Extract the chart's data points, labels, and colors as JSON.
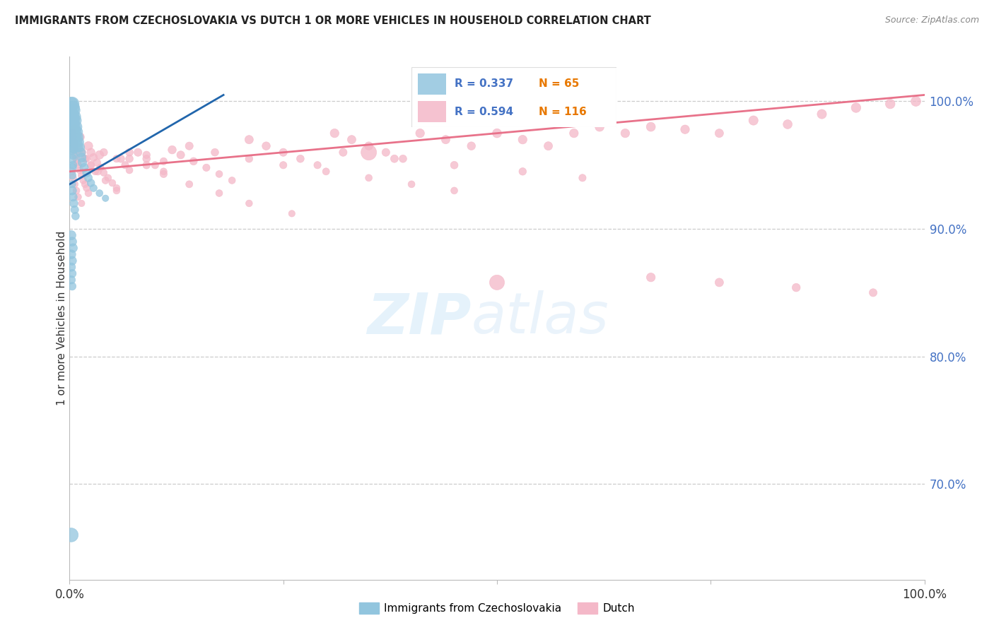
{
  "title": "IMMIGRANTS FROM CZECHOSLOVAKIA VS DUTCH 1 OR MORE VEHICLES IN HOUSEHOLD CORRELATION CHART",
  "source": "Source: ZipAtlas.com",
  "ylabel": "1 or more Vehicles in Household",
  "ytick_labels": [
    "100.0%",
    "90.0%",
    "80.0%",
    "70.0%"
  ],
  "ytick_values": [
    1.0,
    0.9,
    0.8,
    0.7
  ],
  "xlim": [
    0.0,
    1.0
  ],
  "ylim": [
    0.625,
    1.035
  ],
  "legend_label_blue": "Immigrants from Czechoslovakia",
  "legend_label_pink": "Dutch",
  "blue_color": "#92c5de",
  "pink_color": "#f4b8c8",
  "blue_line_color": "#2166ac",
  "pink_line_color": "#e8728a",
  "blue_line_x0": 0.0,
  "blue_line_y0": 0.935,
  "blue_line_x1": 0.18,
  "blue_line_y1": 1.005,
  "pink_line_x0": 0.0,
  "pink_line_y0": 0.945,
  "pink_line_x1": 1.0,
  "pink_line_y1": 1.005,
  "blue_x": [
    0.002,
    0.002,
    0.002,
    0.002,
    0.002,
    0.003,
    0.003,
    0.003,
    0.003,
    0.003,
    0.003,
    0.003,
    0.003,
    0.003,
    0.003,
    0.004,
    0.004,
    0.004,
    0.004,
    0.004,
    0.004,
    0.004,
    0.005,
    0.005,
    0.005,
    0.005,
    0.005,
    0.006,
    0.006,
    0.006,
    0.007,
    0.007,
    0.008,
    0.008,
    0.009,
    0.009,
    0.01,
    0.01,
    0.011,
    0.012,
    0.013,
    0.014,
    0.015,
    0.017,
    0.02,
    0.022,
    0.025,
    0.028,
    0.035,
    0.042,
    0.003,
    0.004,
    0.005,
    0.006,
    0.007,
    0.002,
    0.003,
    0.004,
    0.002,
    0.003,
    0.002,
    0.003,
    0.002,
    0.003,
    0.002
  ],
  "blue_y": [
    0.998,
    0.992,
    0.985,
    0.978,
    0.97,
    0.998,
    0.99,
    0.982,
    0.975,
    0.968,
    0.962,
    0.955,
    0.948,
    0.942,
    0.935,
    0.995,
    0.988,
    0.98,
    0.972,
    0.965,
    0.958,
    0.95,
    0.993,
    0.985,
    0.978,
    0.97,
    0.963,
    0.988,
    0.98,
    0.972,
    0.985,
    0.977,
    0.98,
    0.972,
    0.976,
    0.968,
    0.972,
    0.964,
    0.968,
    0.964,
    0.96,
    0.956,
    0.952,
    0.948,
    0.944,
    0.94,
    0.936,
    0.932,
    0.928,
    0.924,
    0.93,
    0.925,
    0.92,
    0.915,
    0.91,
    0.895,
    0.89,
    0.885,
    0.88,
    0.875,
    0.87,
    0.865,
    0.86,
    0.855,
    0.66
  ],
  "blue_sizes": [
    180,
    150,
    130,
    110,
    90,
    200,
    170,
    150,
    130,
    110,
    95,
    85,
    75,
    65,
    55,
    180,
    150,
    130,
    110,
    95,
    80,
    65,
    160,
    140,
    120,
    100,
    85,
    150,
    130,
    110,
    140,
    120,
    130,
    110,
    120,
    100,
    110,
    95,
    100,
    95,
    90,
    85,
    80,
    75,
    70,
    65,
    60,
    55,
    50,
    45,
    80,
    75,
    70,
    65,
    60,
    90,
    85,
    80,
    85,
    80,
    75,
    70,
    70,
    65,
    200
  ],
  "pink_x": [
    0.002,
    0.003,
    0.004,
    0.005,
    0.006,
    0.007,
    0.008,
    0.009,
    0.01,
    0.012,
    0.014,
    0.016,
    0.018,
    0.02,
    0.022,
    0.025,
    0.028,
    0.032,
    0.036,
    0.04,
    0.045,
    0.05,
    0.055,
    0.06,
    0.065,
    0.07,
    0.08,
    0.09,
    0.1,
    0.11,
    0.12,
    0.13,
    0.145,
    0.16,
    0.175,
    0.19,
    0.21,
    0.23,
    0.25,
    0.27,
    0.29,
    0.31,
    0.33,
    0.35,
    0.37,
    0.39,
    0.41,
    0.44,
    0.47,
    0.5,
    0.53,
    0.56,
    0.59,
    0.62,
    0.65,
    0.68,
    0.72,
    0.76,
    0.8,
    0.84,
    0.88,
    0.92,
    0.96,
    0.99,
    0.005,
    0.01,
    0.015,
    0.02,
    0.025,
    0.03,
    0.04,
    0.055,
    0.07,
    0.09,
    0.11,
    0.14,
    0.17,
    0.21,
    0.25,
    0.3,
    0.35,
    0.4,
    0.45,
    0.003,
    0.004,
    0.006,
    0.008,
    0.01,
    0.014,
    0.018,
    0.025,
    0.033,
    0.042,
    0.055,
    0.07,
    0.09,
    0.11,
    0.14,
    0.175,
    0.21,
    0.26,
    0.32,
    0.38,
    0.45,
    0.53,
    0.6,
    0.68,
    0.76,
    0.85,
    0.94,
    0.35,
    0.5,
    0.006,
    0.012,
    0.022,
    0.035
  ],
  "pink_y": [
    0.975,
    0.972,
    0.968,
    0.965,
    0.962,
    0.958,
    0.955,
    0.952,
    0.95,
    0.946,
    0.942,
    0.938,
    0.935,
    0.932,
    0.928,
    0.96,
    0.956,
    0.952,
    0.948,
    0.944,
    0.94,
    0.936,
    0.932,
    0.955,
    0.95,
    0.946,
    0.96,
    0.955,
    0.95,
    0.945,
    0.962,
    0.958,
    0.953,
    0.948,
    0.943,
    0.938,
    0.97,
    0.965,
    0.96,
    0.955,
    0.95,
    0.975,
    0.97,
    0.965,
    0.96,
    0.955,
    0.975,
    0.97,
    0.965,
    0.975,
    0.97,
    0.965,
    0.975,
    0.98,
    0.975,
    0.98,
    0.978,
    0.975,
    0.985,
    0.982,
    0.99,
    0.995,
    0.998,
    1.0,
    0.968,
    0.964,
    0.96,
    0.955,
    0.95,
    0.945,
    0.96,
    0.955,
    0.96,
    0.958,
    0.953,
    0.965,
    0.96,
    0.955,
    0.95,
    0.945,
    0.94,
    0.935,
    0.93,
    0.945,
    0.94,
    0.935,
    0.93,
    0.925,
    0.92,
    0.955,
    0.95,
    0.945,
    0.938,
    0.93,
    0.955,
    0.95,
    0.943,
    0.935,
    0.928,
    0.92,
    0.912,
    0.96,
    0.955,
    0.95,
    0.945,
    0.94,
    0.862,
    0.858,
    0.854,
    0.85,
    0.96,
    0.858,
    0.978,
    0.972,
    0.965,
    0.958
  ],
  "pink_sizes": [
    90,
    85,
    80,
    75,
    70,
    65,
    60,
    55,
    55,
    50,
    50,
    50,
    50,
    50,
    50,
    70,
    65,
    60,
    55,
    50,
    50,
    50,
    50,
    60,
    55,
    50,
    65,
    60,
    55,
    50,
    70,
    65,
    60,
    55,
    50,
    50,
    75,
    70,
    65,
    60,
    55,
    80,
    75,
    70,
    65,
    60,
    80,
    75,
    70,
    85,
    80,
    75,
    80,
    85,
    80,
    85,
    80,
    75,
    90,
    85,
    90,
    95,
    95,
    100,
    60,
    55,
    55,
    50,
    50,
    50,
    60,
    55,
    60,
    58,
    55,
    65,
    60,
    58,
    55,
    52,
    50,
    50,
    50,
    55,
    52,
    50,
    50,
    48,
    45,
    60,
    58,
    55,
    52,
    50,
    60,
    58,
    55,
    52,
    50,
    48,
    45,
    65,
    62,
    60,
    58,
    55,
    80,
    75,
    70,
    65,
    250,
    230,
    90,
    85,
    80,
    75
  ]
}
